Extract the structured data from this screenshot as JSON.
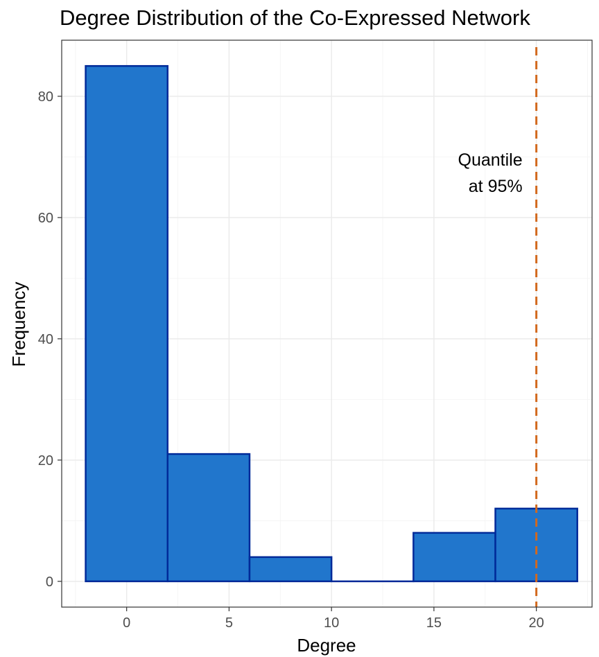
{
  "chart_data": {
    "type": "bar",
    "title": "Degree Distribution of the Co-Expressed Network",
    "xlabel": "Degree",
    "ylabel": "Frequency",
    "bins": [
      {
        "start": -2,
        "end": 2,
        "value": 85
      },
      {
        "start": 2,
        "end": 6,
        "value": 21
      },
      {
        "start": 6,
        "end": 10,
        "value": 4
      },
      {
        "start": 10,
        "end": 14,
        "value": 0
      },
      {
        "start": 14,
        "end": 18,
        "value": 8
      },
      {
        "start": 18,
        "end": 22,
        "value": 12
      }
    ],
    "xlim": [
      -3.17,
      22.72
    ],
    "ylim": [
      -4.25,
      89.25
    ],
    "xticks": [
      0,
      5,
      10,
      15,
      20
    ],
    "yticks": [
      0,
      20,
      40,
      60,
      80
    ],
    "xminor": [
      -2.5,
      2.5,
      7.5,
      12.5,
      17.5,
      22.5
    ],
    "yminor": [
      10,
      30,
      50,
      70
    ],
    "grid": true,
    "quantile_line": {
      "x": 20,
      "label_lines": [
        "Quantile",
        "at 95%"
      ],
      "color": "#d2691e"
    },
    "colors": {
      "bar_fill": "#2176cc",
      "bar_stroke": "#002a99",
      "panel_border": "#333333"
    }
  }
}
